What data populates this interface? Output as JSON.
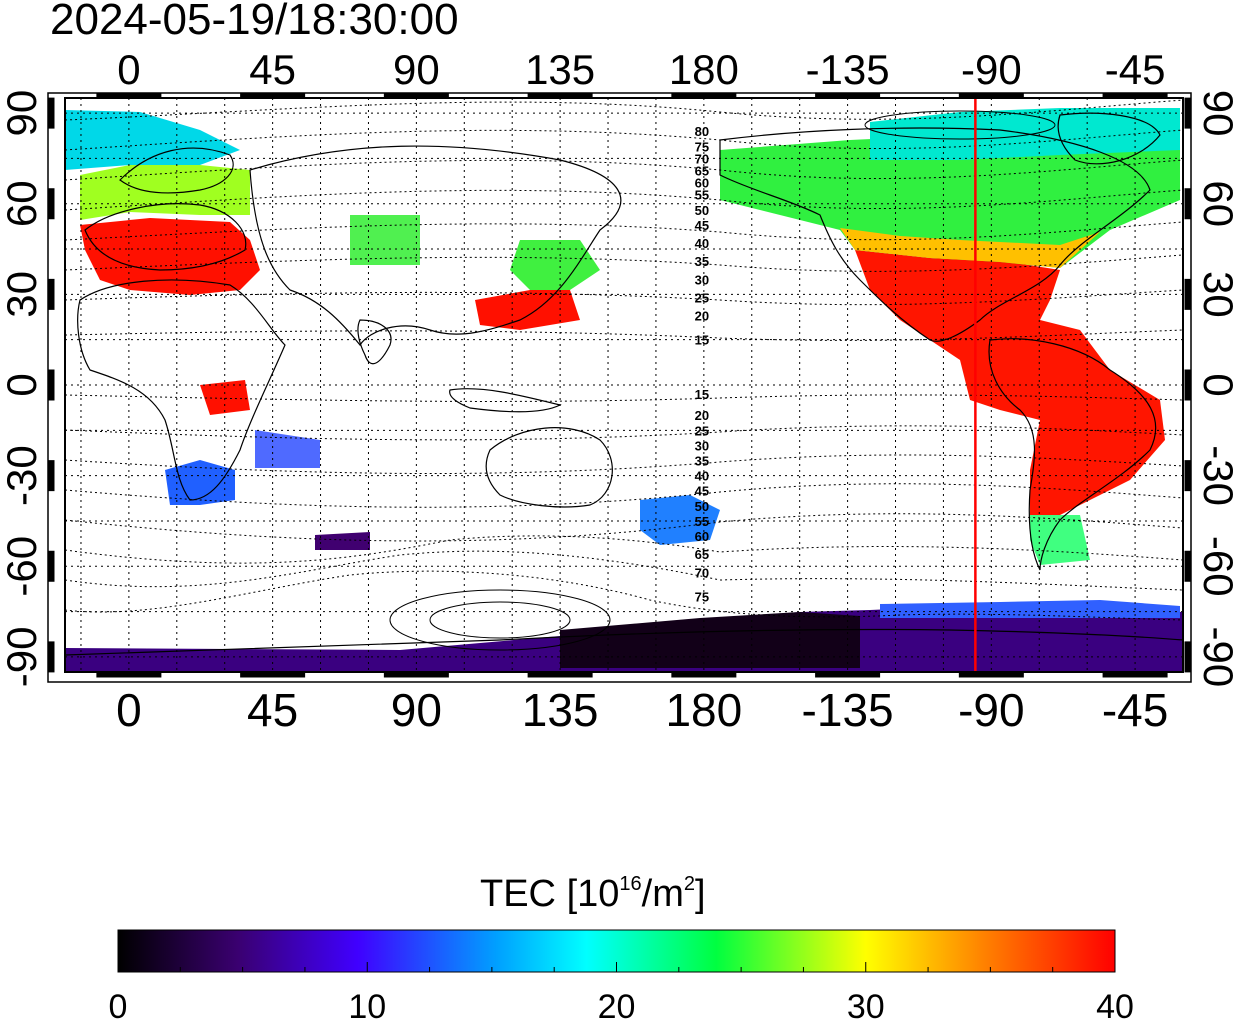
{
  "title": "2024-05-19/18:30:00",
  "map": {
    "top_lon_ticks": [
      "0",
      "45",
      "90",
      "135",
      "180",
      "-135",
      "-90",
      "-45"
    ],
    "bottom_lon_ticks": [
      "0",
      "45",
      "90",
      "135",
      "180",
      "-135",
      "-90",
      "-45"
    ],
    "left_lat_ticks": [
      "90",
      "60",
      "30",
      "0",
      "-30",
      "-60",
      "-90"
    ],
    "right_lat_ticks": [
      "90",
      "60",
      "30",
      "0",
      "-30",
      "-60",
      "-90"
    ],
    "lon_values": [
      0,
      45,
      90,
      135,
      180,
      225,
      270,
      315
    ],
    "lat_values": [
      90,
      60,
      30,
      0,
      -30,
      -60,
      -90
    ],
    "lon_range": [
      -20,
      330
    ],
    "lat_range": [
      -95,
      95
    ],
    "marker_meridian_lon": -95,
    "marker_color": "#ff0000",
    "contour_labels_north": [
      "80",
      "75",
      "70",
      "65",
      "60",
      "55",
      "50",
      "45",
      "40",
      "35",
      "30",
      "25",
      "20",
      "15"
    ],
    "contour_labels_south": [
      "15",
      "20",
      "25",
      "30",
      "35",
      "40",
      "45",
      "50",
      "55",
      "60",
      "65",
      "70",
      "75"
    ],
    "north_label_lats": [
      84,
      79,
      75,
      71,
      67,
      63,
      58,
      53,
      47,
      41,
      35,
      29,
      23,
      15
    ],
    "south_label_lats": [
      -3,
      -10,
      -15,
      -20,
      -25,
      -30,
      -35,
      -40,
      -45,
      -50,
      -56,
      -62,
      -70
    ]
  },
  "colorbar": {
    "label": "TEC",
    "unit_prefix": "[10",
    "unit_exp": "16",
    "unit_mid": "/m",
    "unit_exp2": "2",
    "unit_suffix": "]",
    "ticks": [
      "0",
      "10",
      "20",
      "30",
      "40"
    ],
    "tick_values": [
      0,
      10,
      20,
      30,
      40
    ],
    "range": [
      0,
      40
    ],
    "stops": [
      "#000000",
      "#3a0070",
      "#4000ff",
      "#00ffff",
      "#00ff40",
      "#ffff00",
      "#ff8000",
      "#ff0000"
    ]
  }
}
